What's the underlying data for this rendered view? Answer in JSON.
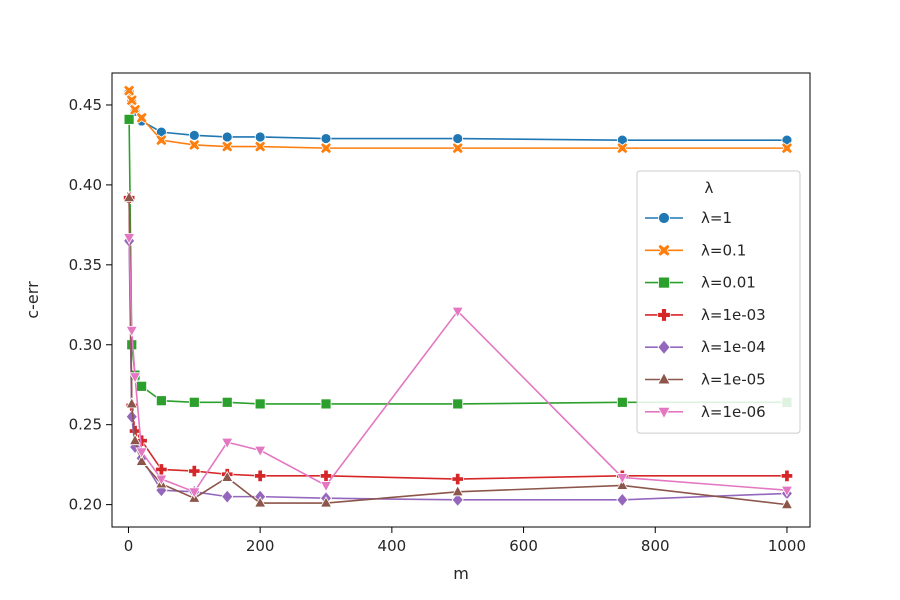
{
  "chart_data": {
    "type": "line",
    "title": "",
    "xlabel": "m",
    "ylabel": "c-err",
    "xlim": [
      -25,
      1035
    ],
    "ylim": [
      0.186,
      0.47
    ],
    "xticks": [
      0,
      200,
      400,
      600,
      800,
      1000
    ],
    "yticks": [
      0.2,
      0.25,
      0.3,
      0.35,
      0.4,
      0.45
    ],
    "xtick_labels": [
      "0",
      "200",
      "400",
      "600",
      "800",
      "1000"
    ],
    "ytick_labels": [
      "0.20",
      "0.25",
      "0.30",
      "0.35",
      "0.40",
      "0.45"
    ],
    "grid": false,
    "legend": {
      "title": "λ",
      "placement": "right"
    },
    "x": [
      1,
      5,
      10,
      20,
      50,
      100,
      150,
      200,
      300,
      500,
      750,
      1000
    ],
    "series": [
      {
        "name": "λ=1",
        "color": "#1f77b4",
        "marker": "circle",
        "values": [
          0.458,
          0.452,
          0.446,
          0.44,
          0.433,
          0.431,
          0.43,
          0.43,
          0.429,
          0.429,
          0.428,
          0.428
        ]
      },
      {
        "name": "λ=0.1",
        "color": "#ff7f0e",
        "marker": "x",
        "values": [
          0.459,
          0.453,
          0.447,
          0.442,
          0.428,
          0.425,
          0.424,
          0.424,
          0.423,
          0.423,
          0.423,
          0.423
        ]
      },
      {
        "name": "λ=0.01",
        "color": "#2ca02c",
        "marker": "square",
        "values": [
          0.441,
          0.3,
          0.281,
          0.274,
          0.265,
          0.264,
          0.264,
          0.263,
          0.263,
          0.263,
          0.264,
          0.264
        ]
      },
      {
        "name": "λ=1e-03",
        "color": "#d62728",
        "marker": "plus",
        "values": [
          0.392,
          0.262,
          0.246,
          0.24,
          0.222,
          0.221,
          0.219,
          0.218,
          0.218,
          0.216,
          0.218,
          0.218
        ]
      },
      {
        "name": "λ=1e-04",
        "color": "#9467bd",
        "marker": "diamond",
        "values": [
          0.365,
          0.255,
          0.236,
          0.229,
          0.209,
          0.208,
          0.205,
          0.205,
          0.204,
          0.203,
          0.203,
          0.207
        ]
      },
      {
        "name": "λ=1e-05",
        "color": "#8c564b",
        "marker": "triangle-up",
        "values": [
          0.392,
          0.263,
          0.24,
          0.227,
          0.213,
          0.204,
          0.217,
          0.201,
          0.201,
          0.208,
          0.212,
          0.2
        ]
      },
      {
        "name": "λ=1e-06",
        "color": "#e377c2",
        "marker": "triangle-down",
        "values": [
          0.367,
          0.309,
          0.28,
          0.233,
          0.216,
          0.208,
          0.239,
          0.234,
          0.212,
          0.321,
          0.217,
          0.209
        ]
      }
    ]
  }
}
